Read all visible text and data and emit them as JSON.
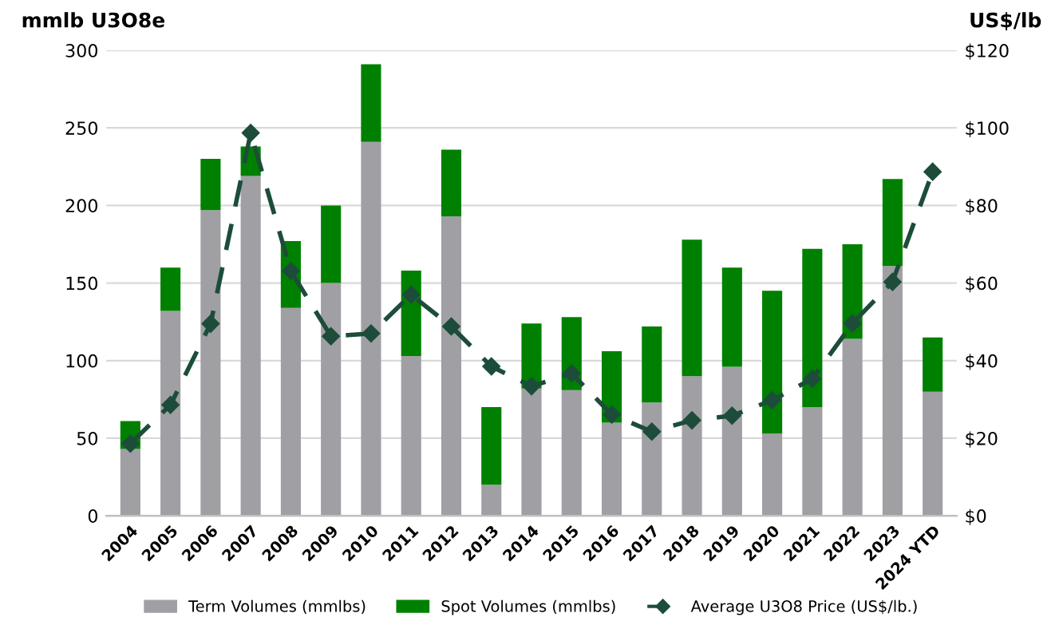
{
  "chart_data": {
    "type": "bar",
    "stacked": true,
    "ylabel": "mmlb U3O8e",
    "y2label": "US$/lb",
    "categories": [
      "2004",
      "2005",
      "2006",
      "2007",
      "2008",
      "2009",
      "2010",
      "2011",
      "2012",
      "2013",
      "2014",
      "2015",
      "2016",
      "2017",
      "2018",
      "2019",
      "2020",
      "2021",
      "2022",
      "2023",
      "2024 YTD"
    ],
    "series": [
      {
        "name": "Term Volumes (mmlbs)",
        "color": "#a09fa4",
        "values": [
          43,
          132,
          197,
          219,
          134,
          150,
          241,
          103,
          193,
          20,
          82,
          81,
          60,
          73,
          90,
          96,
          53,
          70,
          114,
          161,
          80
        ]
      },
      {
        "name": "Spot Volumes (mmlbs)",
        "color": "#008000",
        "values": [
          18,
          28,
          33,
          19,
          43,
          50,
          50,
          55,
          43,
          50,
          42,
          47,
          46,
          49,
          88,
          64,
          92,
          102,
          61,
          56,
          35
        ]
      },
      {
        "name": "Average U3O8 Price (US$/lb.)",
        "type": "line",
        "axis": "y2",
        "color": "#1d4d3a",
        "marker": "diamond",
        "line_style": "dashed",
        "values": [
          18.6,
          28.6,
          49.5,
          98.7,
          63.1,
          46.3,
          47.0,
          57.0,
          48.8,
          38.5,
          33.4,
          36.7,
          26.1,
          21.7,
          24.6,
          25.8,
          29.8,
          35.3,
          49.6,
          60.3,
          88.7
        ]
      }
    ],
    "ylim": [
      0,
      300
    ],
    "yticks": [
      0,
      50,
      100,
      150,
      200,
      250,
      300
    ],
    "y2lim": [
      0,
      120
    ],
    "y2ticks": [
      {
        "value": 0,
        "label": "$0"
      },
      {
        "value": 20,
        "label": "$20"
      },
      {
        "value": 40,
        "label": "$40"
      },
      {
        "value": 60,
        "label": "$60"
      },
      {
        "value": 80,
        "label": "$80"
      },
      {
        "value": 100,
        "label": "$100"
      },
      {
        "value": 120,
        "label": "$120"
      }
    ],
    "grid": "y",
    "legend": "bottom"
  }
}
